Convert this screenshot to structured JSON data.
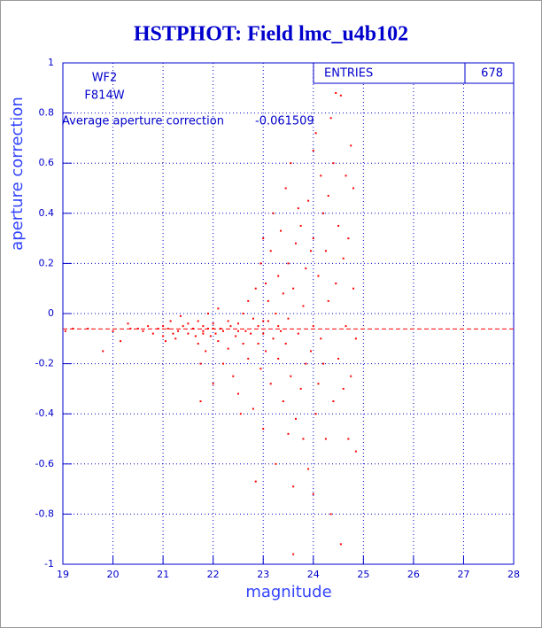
{
  "chart_data": {
    "type": "scatter",
    "title": "HSTPHOT: Field lmc_u4b102",
    "xlabel": "magnitude",
    "ylabel": "aperture correction",
    "annotations": [
      "WF2",
      "F814W"
    ],
    "stats_label": "ENTRIES",
    "entries": 678,
    "average_label": "Average aperture correction",
    "average": -0.061509,
    "average_color": "#ff0000",
    "color": "#ff0000",
    "grid": true,
    "xlim": [
      19,
      28
    ],
    "xticks": [
      19,
      20,
      21,
      22,
      23,
      24,
      25,
      26,
      27,
      28
    ],
    "ylim": [
      -1,
      1
    ],
    "yticks": [
      -1,
      -0.8,
      -0.6,
      -0.4,
      -0.2,
      0,
      0.2,
      0.4,
      0.6,
      0.8,
      1
    ],
    "x": [
      19.05,
      19.2,
      19.5,
      19.8,
      20.0,
      20.15,
      20.3,
      20.35,
      20.5,
      20.6,
      20.7,
      20.8,
      20.9,
      21.0,
      21.0,
      21.05,
      21.1,
      21.15,
      21.2,
      21.25,
      21.3,
      21.35,
      21.4,
      21.5,
      21.5,
      21.6,
      21.65,
      21.7,
      21.7,
      21.75,
      21.75,
      21.8,
      21.8,
      21.85,
      21.9,
      21.9,
      21.95,
      22.0,
      22.0,
      22.05,
      22.1,
      22.1,
      22.15,
      22.2,
      22.2,
      22.3,
      22.3,
      22.35,
      22.4,
      22.45,
      22.5,
      22.5,
      22.55,
      22.6,
      22.6,
      22.65,
      22.7,
      22.7,
      22.75,
      22.8,
      22.8,
      22.85,
      22.85,
      22.9,
      22.9,
      22.95,
      22.95,
      23.0,
      23.0,
      23.0,
      23.05,
      23.05,
      23.1,
      23.1,
      23.15,
      23.15,
      23.2,
      23.2,
      23.25,
      23.25,
      23.3,
      23.3,
      23.35,
      23.35,
      23.4,
      23.4,
      23.45,
      23.45,
      23.5,
      23.5,
      23.5,
      23.55,
      23.55,
      23.6,
      23.6,
      23.65,
      23.65,
      23.7,
      23.7,
      23.75,
      23.75,
      23.8,
      23.8,
      23.85,
      23.85,
      23.9,
      23.9,
      23.95,
      23.95,
      24.0,
      24.0,
      24.0,
      24.05,
      24.05,
      24.1,
      24.1,
      24.15,
      24.15,
      24.2,
      24.2,
      24.25,
      24.25,
      24.3,
      24.3,
      24.35,
      24.35,
      24.4,
      24.4,
      24.45,
      24.45,
      24.5,
      24.5,
      24.55,
      24.55,
      24.6,
      24.6,
      24.65,
      24.65,
      24.7,
      24.7,
      24.75,
      24.75,
      24.8,
      24.8,
      24.85,
      24.85,
      23.6,
      24.0,
      23.0,
      22.0,
      21.8,
      23.3,
      22.5
    ],
    "values": [
      -0.07,
      -0.06,
      -0.06,
      -0.15,
      -0.07,
      -0.11,
      -0.04,
      -0.06,
      -0.06,
      -0.07,
      -0.05,
      -0.08,
      -0.06,
      -0.09,
      -0.05,
      -0.11,
      -0.06,
      -0.03,
      -0.08,
      -0.1,
      -0.07,
      -0.01,
      -0.05,
      -0.08,
      -0.04,
      -0.06,
      -0.09,
      -0.12,
      -0.03,
      -0.2,
      -0.35,
      -0.07,
      -0.05,
      -0.15,
      -0.06,
      0.0,
      -0.09,
      -0.28,
      -0.04,
      -0.08,
      0.02,
      -0.11,
      -0.06,
      -0.2,
      -0.07,
      -0.03,
      -0.14,
      -0.05,
      -0.25,
      -0.09,
      -0.32,
      -0.04,
      -0.4,
      -0.12,
      0.0,
      -0.07,
      -0.18,
      0.05,
      -0.08,
      -0.38,
      -0.02,
      -0.67,
      0.1,
      -0.12,
      -0.05,
      0.2,
      -0.22,
      -0.46,
      -0.08,
      0.3,
      0.12,
      -0.15,
      -0.03,
      0.05,
      -0.28,
      0.25,
      -0.1,
      0.4,
      -0.6,
      0.0,
      0.15,
      -0.18,
      0.33,
      -0.07,
      -0.35,
      0.08,
      0.5,
      -0.12,
      -0.48,
      0.2,
      -0.02,
      0.6,
      -0.25,
      0.1,
      -0.69,
      -0.42,
      0.28,
      0.42,
      -0.08,
      -0.3,
      0.35,
      -0.5,
      0.03,
      0.18,
      -0.2,
      -0.62,
      0.45,
      -0.15,
      0.25,
      -0.72,
      0.3,
      -0.05,
      0.72,
      -0.4,
      0.15,
      -0.28,
      0.55,
      -0.1,
      0.4,
      -0.2,
      0.25,
      -0.5,
      0.47,
      0.05,
      -0.8,
      0.78,
      0.6,
      -0.35,
      0.88,
      0.12,
      -0.18,
      0.35,
      -0.92,
      0.87,
      0.22,
      -0.3,
      0.55,
      -0.05,
      -0.5,
      0.3,
      0.67,
      -0.25,
      0.1,
      0.5,
      -0.55,
      -0.1,
      -0.96,
      0.65,
      -0.03,
      -0.06,
      -0.08,
      -0.05,
      -0.07
    ]
  }
}
